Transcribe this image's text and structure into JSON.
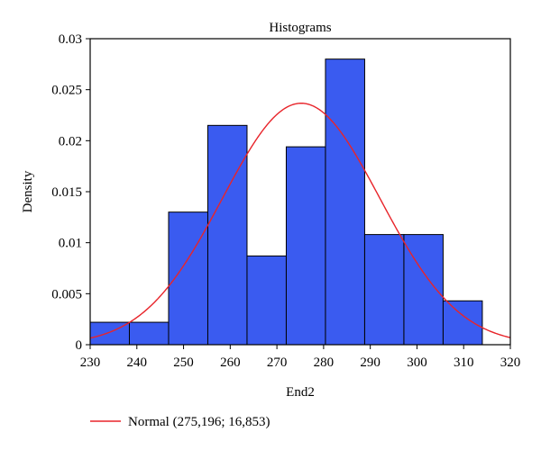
{
  "chart_data": {
    "type": "bar",
    "title": "Histograms",
    "xlabel": "End2",
    "ylabel": "Density",
    "xlim": [
      230,
      320
    ],
    "ylim": [
      0,
      0.03
    ],
    "x_ticks": [
      "230",
      "240",
      "250",
      "260",
      "270",
      "280",
      "290",
      "300",
      "310",
      "320"
    ],
    "y_ticks": [
      "0",
      "0.005",
      "0.01",
      "0.015",
      "0.02",
      "0.025",
      "0.03"
    ],
    "bins": [
      {
        "start": 230.0,
        "end": 238.4,
        "density": 0.0022
      },
      {
        "start": 238.4,
        "end": 246.8,
        "density": 0.0022
      },
      {
        "start": 246.8,
        "end": 255.2,
        "density": 0.013
      },
      {
        "start": 255.2,
        "end": 263.6,
        "density": 0.0215
      },
      {
        "start": 263.6,
        "end": 272.0,
        "density": 0.0087
      },
      {
        "start": 272.0,
        "end": 280.4,
        "density": 0.0194
      },
      {
        "start": 280.4,
        "end": 288.8,
        "density": 0.028
      },
      {
        "start": 288.8,
        "end": 297.2,
        "density": 0.0108
      },
      {
        "start": 297.2,
        "end": 305.6,
        "density": 0.0108
      },
      {
        "start": 305.6,
        "end": 314.0,
        "density": 0.0043
      }
    ],
    "normal_curve": {
      "mean": 275.196,
      "sd": 16.853
    },
    "legend": {
      "label": "Normal (275,196; 16,853)",
      "position": "bottom-left"
    },
    "grid": false,
    "colors": {
      "bar_fill": "#3a5bf0",
      "bar_stroke": "#000000",
      "curve": "#e8242a"
    }
  }
}
